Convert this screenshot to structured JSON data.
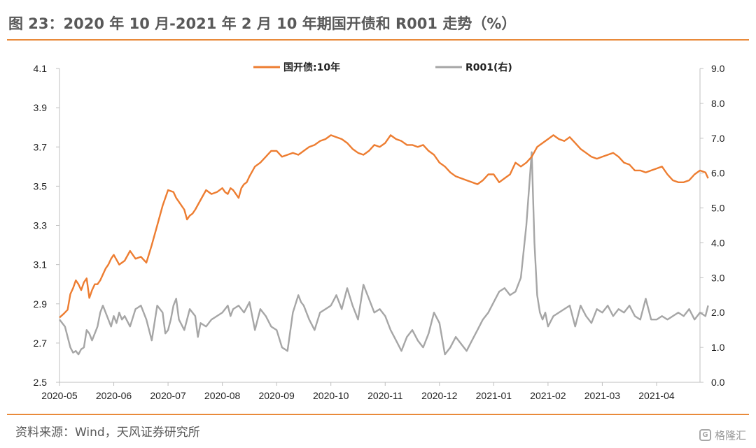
{
  "header": {
    "title": "图 23：2020 年 10 月-2021 年 2 月 10 年期国开债和 R001 走势（%）"
  },
  "footer": {
    "source": "资料来源：Wind，天风证券研究所",
    "watermark_text": "格隆汇"
  },
  "chart_data": {
    "type": "line",
    "title": "",
    "x_labels": [
      "2020-05",
      "2020-06",
      "2020-07",
      "2020-08",
      "2020-09",
      "2020-10",
      "2020-11",
      "2020-12",
      "2021-01",
      "2021-02",
      "2021-03",
      "2021-04"
    ],
    "y_left": {
      "min": 2.5,
      "max": 4.1,
      "ticks": [
        "4.1",
        "3.9",
        "3.7",
        "3.5",
        "3.3",
        "3.1",
        "2.9",
        "2.7",
        "2.5"
      ]
    },
    "y_right": {
      "min": 0.0,
      "max": 9.0,
      "ticks": [
        "9.0",
        "8.0",
        "7.0",
        "6.0",
        "5.0",
        "4.0",
        "3.0",
        "2.0",
        "1.0",
        "0.0"
      ]
    },
    "legend": "top-center",
    "series": [
      {
        "name": "国开债:10年",
        "axis": "left",
        "color": "#ed7d31",
        "x": [
          0,
          0.08,
          0.15,
          0.2,
          0.25,
          0.3,
          0.35,
          0.4,
          0.45,
          0.5,
          0.55,
          0.6,
          0.65,
          0.7,
          0.75,
          0.8,
          0.85,
          0.9,
          0.95,
          1,
          1.1,
          1.2,
          1.3,
          1.4,
          1.5,
          1.6,
          1.7,
          1.8,
          1.9,
          2,
          2.1,
          2.15,
          2.2,
          2.3,
          2.35,
          2.4,
          2.45,
          2.5,
          2.6,
          2.7,
          2.8,
          2.9,
          3,
          3.05,
          3.1,
          3.15,
          3.2,
          3.25,
          3.3,
          3.35,
          3.4,
          3.45,
          3.5,
          3.6,
          3.7,
          3.8,
          3.9,
          4,
          4.1,
          4.2,
          4.3,
          4.4,
          4.5,
          4.6,
          4.7,
          4.8,
          4.9,
          5,
          5.1,
          5.2,
          5.3,
          5.4,
          5.5,
          5.6,
          5.7,
          5.8,
          5.9,
          6,
          6.1,
          6.2,
          6.3,
          6.4,
          6.5,
          6.6,
          6.7,
          6.8,
          6.9,
          7,
          7.1,
          7.2,
          7.3,
          7.4,
          7.5,
          7.6,
          7.7,
          7.8,
          7.9,
          8,
          8.1,
          8.2,
          8.3,
          8.4,
          8.5,
          8.6,
          8.7,
          8.8,
          8.9,
          9,
          9.1,
          9.2,
          9.3,
          9.4,
          9.5,
          9.6,
          9.7,
          9.8,
          9.9,
          10,
          10.1,
          10.2,
          10.3,
          10.4,
          10.5,
          10.6,
          10.7,
          10.8,
          10.9,
          11,
          11.1,
          11.2,
          11.3,
          11.4,
          11.5,
          11.6,
          11.7,
          11.8,
          11.9,
          11.95
        ],
        "y": [
          2.83,
          2.85,
          2.87,
          2.95,
          2.98,
          3.02,
          3.0,
          2.97,
          3.01,
          3.03,
          2.93,
          2.97,
          3.0,
          3.0,
          3.02,
          3.05,
          3.08,
          3.1,
          3.13,
          3.15,
          3.1,
          3.12,
          3.17,
          3.13,
          3.14,
          3.11,
          3.2,
          3.3,
          3.4,
          3.48,
          3.47,
          3.44,
          3.42,
          3.38,
          3.33,
          3.35,
          3.36,
          3.38,
          3.43,
          3.48,
          3.46,
          3.47,
          3.49,
          3.47,
          3.46,
          3.49,
          3.48,
          3.46,
          3.44,
          3.49,
          3.51,
          3.52,
          3.55,
          3.6,
          3.62,
          3.65,
          3.68,
          3.68,
          3.65,
          3.66,
          3.67,
          3.66,
          3.68,
          3.7,
          3.71,
          3.73,
          3.74,
          3.76,
          3.75,
          3.74,
          3.72,
          3.69,
          3.67,
          3.66,
          3.68,
          3.71,
          3.7,
          3.72,
          3.76,
          3.74,
          3.73,
          3.71,
          3.71,
          3.7,
          3.71,
          3.68,
          3.66,
          3.62,
          3.6,
          3.57,
          3.55,
          3.54,
          3.53,
          3.52,
          3.51,
          3.53,
          3.56,
          3.56,
          3.52,
          3.54,
          3.56,
          3.62,
          3.6,
          3.62,
          3.65,
          3.7,
          3.72,
          3.74,
          3.76,
          3.74,
          3.73,
          3.75,
          3.72,
          3.69,
          3.67,
          3.65,
          3.64,
          3.65,
          3.66,
          3.67,
          3.65,
          3.62,
          3.61,
          3.58,
          3.58,
          3.57,
          3.58,
          3.59,
          3.6,
          3.56,
          3.53,
          3.52,
          3.52,
          3.53,
          3.56,
          3.58,
          3.57,
          3.54
        ]
      },
      {
        "name": "R001(右)",
        "axis": "right",
        "color": "#a6a6a6",
        "x": [
          0,
          0.1,
          0.2,
          0.25,
          0.3,
          0.35,
          0.4,
          0.45,
          0.5,
          0.55,
          0.6,
          0.65,
          0.7,
          0.75,
          0.8,
          0.85,
          0.9,
          0.95,
          1,
          1.05,
          1.1,
          1.15,
          1.2,
          1.3,
          1.4,
          1.5,
          1.6,
          1.7,
          1.8,
          1.9,
          1.95,
          2,
          2.05,
          2.1,
          2.15,
          2.2,
          2.3,
          2.4,
          2.5,
          2.55,
          2.6,
          2.7,
          2.8,
          2.9,
          3,
          3.05,
          3.1,
          3.15,
          3.2,
          3.3,
          3.4,
          3.5,
          3.6,
          3.7,
          3.8,
          3.9,
          4,
          4.1,
          4.2,
          4.3,
          4.4,
          4.45,
          4.5,
          4.6,
          4.7,
          4.8,
          4.9,
          5,
          5.1,
          5.2,
          5.3,
          5.4,
          5.5,
          5.6,
          5.7,
          5.8,
          5.9,
          6,
          6.1,
          6.2,
          6.3,
          6.4,
          6.5,
          6.6,
          6.7,
          6.8,
          6.9,
          7,
          7.1,
          7.2,
          7.3,
          7.4,
          7.5,
          7.6,
          7.7,
          7.8,
          7.9,
          8,
          8.1,
          8.2,
          8.3,
          8.4,
          8.5,
          8.6,
          8.7,
          8.75,
          8.8,
          8.85,
          8.9,
          8.95,
          9,
          9.1,
          9.2,
          9.3,
          9.4,
          9.5,
          9.6,
          9.7,
          9.8,
          9.9,
          10,
          10.1,
          10.2,
          10.3,
          10.4,
          10.5,
          10.6,
          10.7,
          10.8,
          10.9,
          11,
          11.1,
          11.2,
          11.3,
          11.4,
          11.5,
          11.6,
          11.7,
          11.8,
          11.9,
          11.95
        ],
        "y": [
          1.8,
          1.6,
          1.0,
          0.85,
          0.9,
          0.8,
          0.95,
          1.0,
          1.5,
          1.4,
          1.2,
          1.4,
          1.6,
          2.0,
          2.2,
          2.0,
          1.8,
          1.6,
          1.9,
          1.7,
          2.0,
          1.8,
          1.9,
          1.6,
          2.1,
          2.2,
          1.8,
          1.2,
          2.2,
          2.0,
          1.4,
          1.5,
          1.8,
          2.2,
          2.4,
          1.8,
          1.5,
          2.1,
          1.9,
          1.3,
          1.7,
          1.6,
          1.8,
          1.9,
          2.0,
          2.1,
          2.2,
          1.9,
          2.1,
          2.2,
          2.0,
          2.3,
          1.5,
          2.1,
          1.9,
          1.6,
          1.5,
          1.0,
          0.9,
          2.0,
          2.5,
          2.3,
          2.2,
          1.8,
          1.5,
          2.0,
          2.1,
          2.2,
          2.5,
          2.1,
          2.7,
          2.2,
          1.8,
          2.8,
          2.4,
          2.0,
          2.1,
          1.9,
          1.5,
          1.2,
          0.9,
          1.3,
          1.5,
          1.2,
          1.0,
          1.4,
          2.0,
          1.7,
          0.8,
          1.0,
          1.3,
          1.1,
          0.9,
          1.2,
          1.5,
          1.8,
          2.0,
          2.3,
          2.6,
          2.7,
          2.5,
          2.6,
          3.0,
          4.5,
          6.6,
          4.0,
          2.5,
          2.0,
          1.8,
          2.0,
          1.6,
          1.9,
          2.0,
          2.1,
          2.2,
          1.6,
          2.2,
          1.9,
          1.7,
          2.1,
          2.0,
          2.2,
          1.9,
          2.1,
          2.0,
          2.2,
          1.9,
          1.8,
          2.4,
          1.8,
          1.8,
          1.9,
          1.8,
          1.9,
          2.0,
          1.9,
          2.1,
          1.8,
          2.0,
          1.9,
          2.2
        ]
      }
    ]
  }
}
